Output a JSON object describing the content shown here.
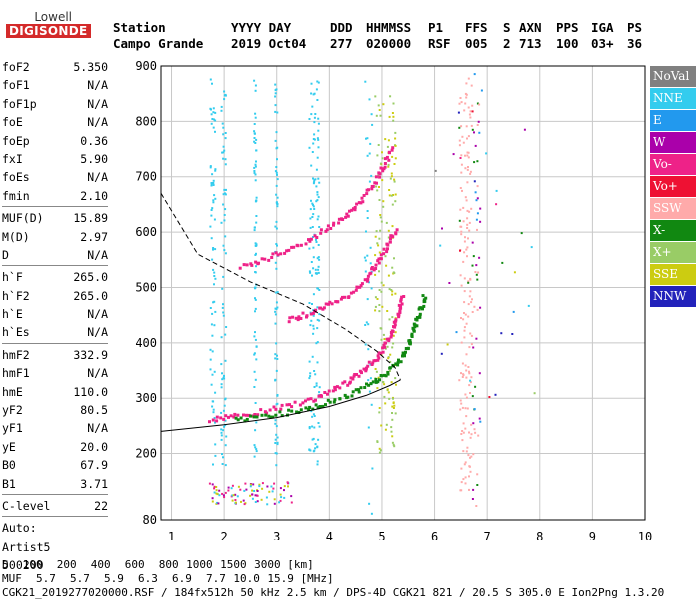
{
  "logo": {
    "line1": "Lowell",
    "line2": "DIGISONDE"
  },
  "header": {
    "station_label": "Station",
    "station_value": "Campo Grande",
    "date_label": "YYYY DAY",
    "date_value": "2019 Oct04",
    "doy_label": "DDD",
    "doy_value": "277",
    "time_label": "HHMMSS",
    "time_value": "020000",
    "p1_label": "P1",
    "p1_value": "RSF",
    "ffs_label": "FFS",
    "ffs_value": "005",
    "s_label": "S",
    "s_value": "2",
    "axn_label": "AXN",
    "axn_value": "713",
    "pps_label": "PPS",
    "pps_value": "100",
    "iga_label": "IGA",
    "iga_value": "03+",
    "ps_label": "PS",
    "ps_value": "36"
  },
  "params": {
    "group1": [
      {
        "name": "foF2",
        "value": "5.350"
      },
      {
        "name": "foF1",
        "value": "N/A"
      },
      {
        "name": "foF1p",
        "value": "N/A"
      },
      {
        "name": "foE",
        "value": "N/A"
      },
      {
        "name": "foEp",
        "value": "0.36"
      },
      {
        "name": "fxI",
        "value": "5.90"
      },
      {
        "name": "foEs",
        "value": "N/A"
      },
      {
        "name": "fmin",
        "value": "2.10"
      }
    ],
    "group2": [
      {
        "name": "MUF(D)",
        "value": "15.89"
      },
      {
        "name": "M(D)",
        "value": "2.97"
      },
      {
        "name": "D",
        "value": "N/A"
      }
    ],
    "group3": [
      {
        "name": "h`F",
        "value": "265.0"
      },
      {
        "name": "h`F2",
        "value": "265.0"
      },
      {
        "name": "h`E",
        "value": "N/A"
      },
      {
        "name": "h`Es",
        "value": "N/A"
      }
    ],
    "group4": [
      {
        "name": "hmF2",
        "value": "332.9"
      },
      {
        "name": "hmF1",
        "value": "N/A"
      },
      {
        "name": "hmE",
        "value": "110.0"
      },
      {
        "name": "yF2",
        "value": "80.5"
      },
      {
        "name": "yF1",
        "value": "N/A"
      },
      {
        "name": "yE",
        "value": "20.0"
      },
      {
        "name": "B0",
        "value": "67.9"
      },
      {
        "name": "B1",
        "value": "3.71"
      }
    ],
    "clevel": {
      "name": "C-level",
      "value": "22"
    },
    "auto_label": "Auto:",
    "artist": "Artist5",
    "code": "500200"
  },
  "legend": [
    {
      "label": "NoVal",
      "color": "#808080"
    },
    {
      "label": "NNE",
      "color": "#33ccee"
    },
    {
      "label": "E",
      "color": "#2299ee"
    },
    {
      "label": "W",
      "color": "#aa00aa"
    },
    {
      "label": "Vo-",
      "color": "#ee2288"
    },
    {
      "label": "Vo+",
      "color": "#ee1133"
    },
    {
      "label": "SSW",
      "color": "#ffaaaa"
    },
    {
      "label": "X-",
      "color": "#118811"
    },
    {
      "label": "X+",
      "color": "#99cc66"
    },
    {
      "label": "SSE",
      "color": "#cccc11"
    },
    {
      "label": "NNW",
      "color": "#2222bb"
    }
  ],
  "bottom": {
    "d_label": "D",
    "d_values": [
      "100",
      "200",
      "400",
      "600",
      "800",
      "1000",
      "1500",
      "3000"
    ],
    "d_unit": "[km]",
    "muf_label": "MUF",
    "muf_values": [
      "5.7",
      "5.7",
      "5.9",
      "6.3",
      "6.9",
      "7.7",
      "10.0",
      "15.9"
    ],
    "muf_unit": "[MHz]",
    "footer": "CGK21_2019277020000.RSF / 184fx512h 50 kHz 2.5 km / DPS-4D CGK21 821 / 20.5 S 305.0 E Ion2Png 1.3.20"
  },
  "chart_data": {
    "type": "scatter",
    "xlim": [
      0.8,
      10.0
    ],
    "ylim": [
      80,
      900
    ],
    "x_ticks": [
      1,
      2,
      3,
      4,
      5,
      6,
      7,
      8,
      9,
      10
    ],
    "y_ticks": [
      80,
      200,
      300,
      400,
      500,
      600,
      700,
      800,
      900
    ],
    "grid": true,
    "traces": [
      {
        "mode": "O",
        "color": "#ee2288",
        "points": [
          [
            1.7,
            262
          ],
          [
            2.2,
            270
          ],
          [
            2.8,
            280
          ],
          [
            3.4,
            293
          ],
          [
            3.9,
            310
          ],
          [
            4.3,
            330
          ],
          [
            4.6,
            350
          ],
          [
            4.85,
            372
          ],
          [
            5.05,
            400
          ],
          [
            5.2,
            430
          ],
          [
            5.3,
            460
          ],
          [
            5.38,
            490
          ]
        ]
      },
      {
        "mode": "X",
        "color": "#118811",
        "points": [
          [
            2.2,
            263
          ],
          [
            2.8,
            270
          ],
          [
            3.4,
            280
          ],
          [
            3.9,
            293
          ],
          [
            4.4,
            310
          ],
          [
            4.8,
            330
          ],
          [
            5.1,
            350
          ],
          [
            5.35,
            375
          ],
          [
            5.5,
            400
          ],
          [
            5.6,
            430
          ],
          [
            5.7,
            460
          ],
          [
            5.8,
            490
          ]
        ]
      },
      {
        "mode": "2hop",
        "color": "#ee2288",
        "points": [
          [
            3.2,
            445
          ],
          [
            3.6,
            455
          ],
          [
            4.0,
            472
          ],
          [
            4.4,
            492
          ],
          [
            4.7,
            520
          ],
          [
            4.9,
            550
          ],
          [
            5.1,
            580
          ],
          [
            5.25,
            610
          ]
        ]
      },
      {
        "mode": "3hop",
        "color": "#ee2288",
        "points": [
          [
            2.3,
            540
          ],
          [
            2.8,
            555
          ],
          [
            3.3,
            575
          ],
          [
            3.8,
            600
          ],
          [
            4.2,
            625
          ],
          [
            4.5,
            650
          ],
          [
            4.8,
            685
          ],
          [
            5.0,
            720
          ],
          [
            5.2,
            760
          ]
        ]
      }
    ],
    "profile_upper": [
      [
        0.8,
        670
      ],
      [
        1.5,
        560
      ],
      [
        2.5,
        510
      ],
      [
        3.5,
        470
      ],
      [
        4.3,
        425
      ],
      [
        4.9,
        385
      ],
      [
        5.25,
        355
      ],
      [
        5.35,
        333
      ]
    ],
    "profile_lower": [
      [
        0.8,
        240
      ],
      [
        2.0,
        252
      ],
      [
        3.0,
        265
      ],
      [
        4.0,
        285
      ],
      [
        4.7,
        305
      ],
      [
        5.15,
        323
      ],
      [
        5.35,
        333
      ]
    ]
  }
}
